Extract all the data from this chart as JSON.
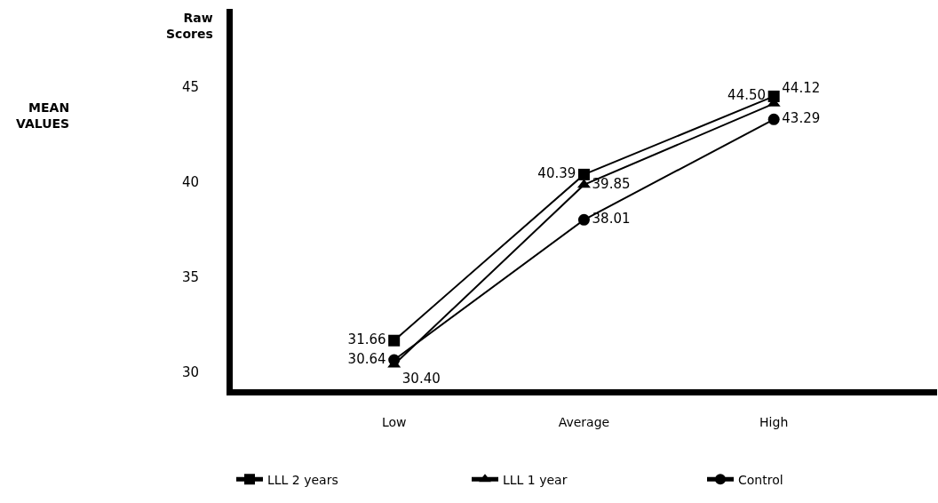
{
  "chart_data": {
    "type": "line",
    "annotations": [
      "MEAN\nVALUES",
      "Raw\nScores"
    ],
    "categories": [
      "Low",
      "Average",
      "High"
    ],
    "series": [
      {
        "name": "LLL 2 years",
        "color": "#000000",
        "marker": "square",
        "values": [
          31.66,
          40.39,
          44.5
        ],
        "value_labels": [
          "31.66",
          "40.39",
          "44.50"
        ]
      },
      {
        "name": "LLL 1 year",
        "color": "#000000",
        "marker": "triangle",
        "values": [
          30.4,
          39.85,
          44.12
        ],
        "value_labels": [
          "30.40",
          "39.85",
          "44.12"
        ]
      },
      {
        "name": "Control",
        "color": "#000000",
        "marker": "circle",
        "values": [
          30.64,
          38.01,
          43.29
        ],
        "value_labels": [
          "30.64",
          "38.01",
          "43.29"
        ]
      }
    ],
    "ylim": [
      29.1,
      49.1
    ],
    "yticks": [
      30,
      35,
      40,
      45
    ],
    "legend": "bottom",
    "line_style": "solid"
  }
}
